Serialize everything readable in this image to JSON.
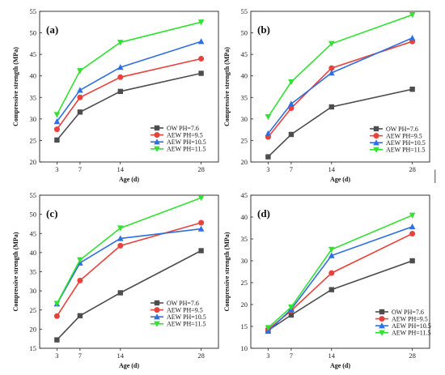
{
  "figure": {
    "right_margin_mark": "|"
  },
  "colors": {
    "OW": "#4d4d4d",
    "AEW9.5": "#e8423c",
    "AEW10.5": "#2f6fe0",
    "AEW11.5": "#33e033"
  },
  "chart_data": [
    {
      "panel": "(a)",
      "type": "line",
      "xlabel": "Age  (d)",
      "ylabel": "Compressive strength (MPa)",
      "x": [
        3,
        7,
        14,
        28
      ],
      "xticks": [
        "3",
        "7",
        "14",
        "28"
      ],
      "xlim": [
        0,
        31
      ],
      "ylim": [
        20,
        55
      ],
      "yticks": [
        20,
        25,
        30,
        35,
        40,
        45,
        50,
        55
      ],
      "legend_position": "bottom-right",
      "series": [
        {
          "name": "OW  PH=7.6",
          "marker": "square",
          "color": "#4d4d4d",
          "values": [
            25.1,
            31.6,
            36.4,
            40.6
          ]
        },
        {
          "name": "AEW PH=9.5",
          "marker": "circle",
          "color": "#e8423c",
          "values": [
            27.6,
            35.0,
            39.7,
            44.0
          ]
        },
        {
          "name": "AEW PH=10.5",
          "marker": "triangle-up",
          "color": "#2f6fe0",
          "values": [
            29.4,
            36.7,
            42.0,
            48.0
          ]
        },
        {
          "name": "AEW PH=11.5",
          "marker": "triangle-down",
          "color": "#33e033",
          "values": [
            31.0,
            41.2,
            47.8,
            52.5
          ]
        }
      ]
    },
    {
      "panel": "(b)",
      "type": "line",
      "xlabel": "Age  (d)",
      "ylabel": "Compressive strength (MPa)",
      "x": [
        3,
        7,
        14,
        28
      ],
      "xticks": [
        "3",
        "7",
        "14",
        "28"
      ],
      "xlim": [
        0,
        31
      ],
      "ylim": [
        20,
        55
      ],
      "yticks": [
        20,
        25,
        30,
        35,
        40,
        45,
        50,
        55
      ],
      "legend_position": "bottom-right",
      "series": [
        {
          "name": "OW  PH=7.6",
          "marker": "square",
          "color": "#4d4d4d",
          "values": [
            21.2,
            26.4,
            32.8,
            36.9
          ]
        },
        {
          "name": "AEW PH=9.5",
          "marker": "circle",
          "color": "#e8423c",
          "values": [
            25.8,
            32.5,
            41.8,
            48.0
          ]
        },
        {
          "name": "AEW PH=10.5",
          "marker": "triangle-up",
          "color": "#2f6fe0",
          "values": [
            26.6,
            33.5,
            40.7,
            48.8
          ]
        },
        {
          "name": "AEW PH=11.5",
          "marker": "triangle-down",
          "color": "#33e033",
          "values": [
            30.5,
            38.6,
            47.5,
            54.2
          ]
        }
      ]
    },
    {
      "panel": "(c)",
      "type": "line",
      "xlabel": "Age  (d)",
      "ylabel": "Compressive strength (MPa)",
      "x": [
        3,
        7,
        14,
        28
      ],
      "xticks": [
        "3",
        "7",
        "14",
        "28"
      ],
      "xlim": [
        0,
        31
      ],
      "ylim": [
        15,
        55
      ],
      "yticks": [
        15,
        20,
        25,
        30,
        35,
        40,
        45,
        50,
        55
      ],
      "legend_position": "bottom-right",
      "series": [
        {
          "name": "OW  PH=7.6",
          "marker": "square",
          "color": "#4d4d4d",
          "values": [
            17.2,
            23.5,
            29.5,
            40.5
          ]
        },
        {
          "name": "AEW PH=9.5",
          "marker": "circle",
          "color": "#e8423c",
          "values": [
            23.4,
            32.7,
            41.8,
            47.8
          ]
        },
        {
          "name": "AEW PH=10.5",
          "marker": "triangle-up",
          "color": "#2f6fe0",
          "values": [
            26.6,
            37.3,
            43.7,
            46.2
          ]
        },
        {
          "name": "AEW PH=11.5",
          "marker": "triangle-down",
          "color": "#33e033",
          "values": [
            26.7,
            38.1,
            46.4,
            54.3
          ]
        }
      ]
    },
    {
      "panel": "(d)",
      "type": "line",
      "xlabel": "Age  (d)",
      "ylabel": "Compressive strength (MPa)",
      "x": [
        3,
        7,
        14,
        28
      ],
      "xticks": [
        "3",
        "7",
        "14",
        "28"
      ],
      "xlim": [
        0,
        31
      ],
      "ylim": [
        10,
        45
      ],
      "yticks": [
        10,
        15,
        20,
        25,
        30,
        35,
        40,
        45
      ],
      "legend_position": "bottom-right",
      "series": [
        {
          "name": "OW  PH=7.6",
          "marker": "square",
          "color": "#4d4d4d",
          "values": [
            14.1,
            17.6,
            23.4,
            30.0
          ]
        },
        {
          "name": "AEW PH=9.5",
          "marker": "circle",
          "color": "#e8423c",
          "values": [
            14.3,
            18.6,
            27.2,
            36.2
          ]
        },
        {
          "name": "AEW PH=10.5",
          "marker": "triangle-up",
          "color": "#2f6fe0",
          "values": [
            13.9,
            18.9,
            31.2,
            37.8
          ]
        },
        {
          "name": "AEW PH=11.5",
          "marker": "triangle-down",
          "color": "#33e033",
          "values": [
            14.7,
            19.4,
            32.6,
            40.4
          ]
        }
      ]
    }
  ]
}
